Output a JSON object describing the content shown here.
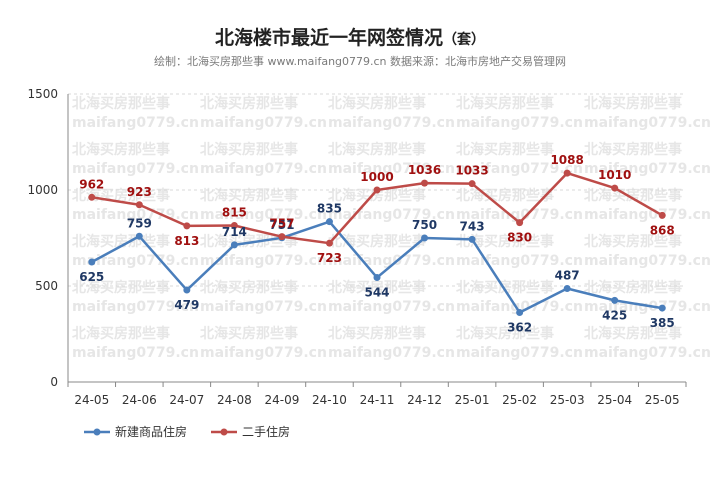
{
  "chart_data": {
    "type": "line",
    "title": "北海楼市最近一年网签情况",
    "title_suffix": "（套）",
    "subtitle": "绘制：北海买房那些事 www.maifang0779.cn   数据来源：北海市房地产交易管理网",
    "watermark": [
      "北海买房那些事",
      "maifang0779.cn"
    ],
    "categories": [
      "24-05",
      "24-06",
      "24-07",
      "24-08",
      "24-09",
      "24-10",
      "24-11",
      "24-12",
      "25-01",
      "25-02",
      "25-03",
      "25-04",
      "25-05"
    ],
    "ylim": [
      0,
      1500
    ],
    "yticks": [
      0,
      500,
      1000,
      1500
    ],
    "legend_position": "bottom-left",
    "grid": "horizontal dashed",
    "series": [
      {
        "name": "新建商品住房",
        "color": "#4a7ebb",
        "label_color": "#1f3864",
        "values": [
          625,
          759,
          479,
          714,
          751,
          835,
          544,
          750,
          743,
          362,
          487,
          425,
          385
        ]
      },
      {
        "name": "二手住房",
        "color": "#be4b48",
        "label_color": "#a01010",
        "values": [
          962,
          923,
          813,
          815,
          757,
          723,
          1000,
          1036,
          1033,
          830,
          1088,
          1010,
          868
        ]
      }
    ]
  }
}
